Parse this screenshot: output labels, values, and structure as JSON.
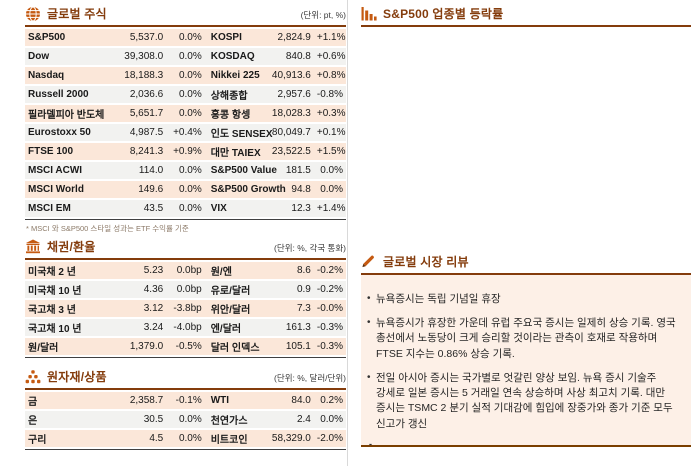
{
  "colors": {
    "accent": "#c55a11",
    "heading": "#843c0c",
    "row_peach": "#fbe7d9",
    "row_alt": "#f2f2f0",
    "review_bg": "#fdf0e7",
    "line_dark": "#404040",
    "divider": "#d9d9d9",
    "review_line": "#7b3f00"
  },
  "icons": {
    "global_equity": "globe-icon",
    "bond_fx": "bank-icon",
    "commodity": "dots-pyramid-icon",
    "sector_chart": "bar-chart-icon",
    "review": "pencil-icon"
  },
  "sections": {
    "global_equity": {
      "title": "글로벌 주식",
      "unit": "(단위: pt, %)",
      "rows": [
        [
          "S&P500",
          "5,537.0",
          "0.0%",
          "KOSPI",
          "2,824.9",
          "+1.1%"
        ],
        [
          "Dow",
          "39,308.0",
          "0.0%",
          "KOSDAQ",
          "840.8",
          "+0.6%"
        ],
        [
          "Nasdaq",
          "18,188.3",
          "0.0%",
          "Nikkei 225",
          "40,913.6",
          "+0.8%"
        ],
        [
          "Russell 2000",
          "2,036.6",
          "0.0%",
          "상해종합",
          "2,957.6",
          "-0.8%"
        ],
        [
          "필라델피아 반도체",
          "5,651.7",
          "0.0%",
          "홍콩 항셍",
          "18,028.3",
          "+0.3%"
        ],
        [
          "Eurostoxx 50",
          "4,987.5",
          "+0.4%",
          "인도 SENSEX",
          "80,049.7",
          "+0.1%"
        ],
        [
          "FTSE 100",
          "8,241.3",
          "+0.9%",
          "대만 TAIEX",
          "23,522.5",
          "+1.5%"
        ],
        [
          "MSCI ACWI",
          "114.0",
          "0.0%",
          "S&P500 Value",
          "181.5",
          "0.0%"
        ],
        [
          "MSCI World",
          "149.6",
          "0.0%",
          "S&P500 Growth",
          "94.8",
          "0.0%"
        ],
        [
          "MSCI EM",
          "43.5",
          "0.0%",
          "VIX",
          "12.3",
          "+1.4%"
        ]
      ],
      "footnote": "* MSCI 와 S&P500 스타일 성과는 ETF 수익률 기준"
    },
    "bond_fx": {
      "title": "채권/환율",
      "unit": "(단위: %, 각국 통화)",
      "rows": [
        [
          "미국채 2 년",
          "5.23",
          "0.0bp",
          "원/엔",
          "8.6",
          "-0.2%"
        ],
        [
          "미국채 10 년",
          "4.36",
          "0.0bp",
          "유로/달러",
          "0.9",
          "-0.2%"
        ],
        [
          "국고채 3 년",
          "3.12",
          "-3.8bp",
          "위안/달러",
          "7.3",
          "-0.0%"
        ],
        [
          "국고채 10 년",
          "3.24",
          "-4.0bp",
          "엔/달러",
          "161.3",
          "-0.3%"
        ],
        [
          "원/달러",
          "1,379.0",
          "-0.5%",
          "달러 인덱스",
          "105.1",
          "-0.3%"
        ]
      ]
    },
    "commodity": {
      "title": "원자재/상품",
      "unit": "(단위: %, 달러/단위)",
      "rows": [
        [
          "금",
          "2,358.7",
          "-0.1%",
          "WTI",
          "84.0",
          "0.2%"
        ],
        [
          "은",
          "30.5",
          "0.0%",
          "천연가스",
          "2.4",
          "0.0%"
        ],
        [
          "구리",
          "4.5",
          "0.0%",
          "비트코인",
          "58,329.0",
          "-2.0%"
        ]
      ]
    },
    "sector_chart": {
      "title": "S&P500 업종별 등락률"
    },
    "review": {
      "title": "글로벌 시장 리뷰",
      "bullets": [
        "뉴욕증시는 독립 기념일 휴장",
        "뉴욕증시가 휴장한 가운데 유럽 주요국 증시는 일제히 상승 기록. 영국 총선에서 노동당이 크게 승리할 것이라는 관측이 호재로 작용하며 FTSE 지수는 0.86% 상승 기록.",
        "전일 아시아 증시는 국가별로 엇갈린 양상 보임. 뉴욕 증시 기술주 강세로 일본 증시는 5 거래일 연속 상승하며 사상 최고치 기록. 대만 증시는 TSMC 2 분기 실적 기대감에 힘입에 장중가와 종가 기준 모두 신고가 갱신"
      ],
      "trailing_mark": "-"
    }
  }
}
